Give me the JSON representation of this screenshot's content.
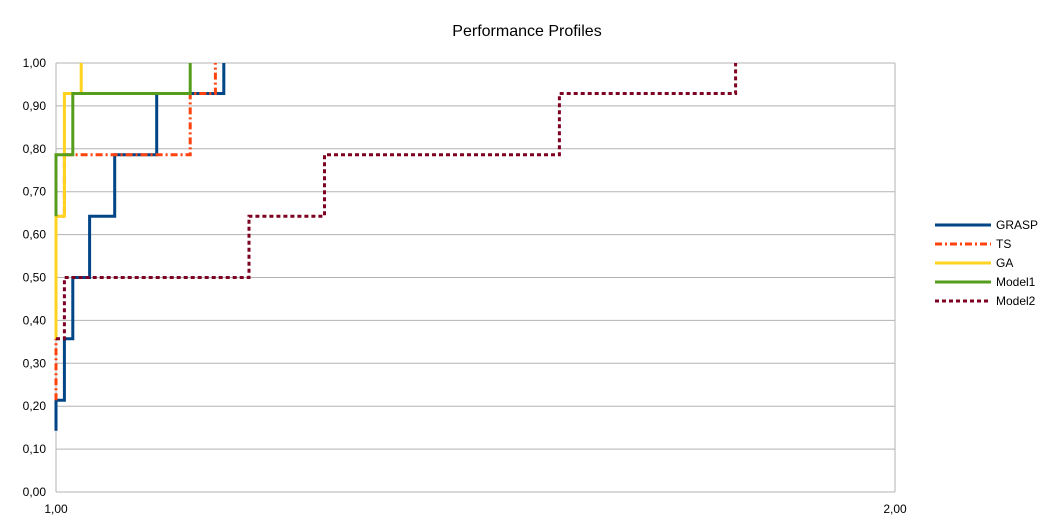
{
  "chart_data": {
    "type": "line",
    "step": true,
    "title": "Performance Profiles",
    "xlabel": "",
    "ylabel": "",
    "xlim": [
      1.0,
      2.0
    ],
    "ylim": [
      0.0,
      1.0
    ],
    "x_ticks": [
      "1,00",
      "2,00"
    ],
    "y_ticks": [
      "0,00",
      "0,10",
      "0,20",
      "0,30",
      "0,40",
      "0,50",
      "0,60",
      "0,70",
      "0,80",
      "0,90",
      "1,00"
    ],
    "grid": true,
    "legend_position": "right",
    "series": [
      {
        "name": "GRASP",
        "color": "#004586",
        "style": "solid",
        "x": [
          1.0,
          1.0,
          1.01,
          1.01,
          1.02,
          1.02,
          1.04,
          1.04,
          1.07,
          1.07,
          1.12,
          1.12,
          1.2,
          1.2
        ],
        "y": [
          0.143,
          0.214,
          0.214,
          0.357,
          0.357,
          0.5,
          0.5,
          0.643,
          0.643,
          0.786,
          0.786,
          0.929,
          0.929,
          1.0
        ]
      },
      {
        "name": "TS",
        "color": "#ff420e",
        "style": "dashdot",
        "x": [
          1.0,
          1.0,
          1.0,
          1.0,
          1.01,
          1.01,
          1.16,
          1.16,
          1.19,
          1.19
        ],
        "y": [
          0.214,
          0.5,
          0.5,
          0.643,
          0.643,
          0.786,
          0.786,
          0.929,
          0.929,
          1.0
        ]
      },
      {
        "name": "GA",
        "color": "#ffd320",
        "style": "solid",
        "x": [
          1.0,
          1.0,
          1.01,
          1.01,
          1.03,
          1.03
        ],
        "y": [
          0.357,
          0.643,
          0.643,
          0.929,
          0.929,
          1.0
        ]
      },
      {
        "name": "Model1",
        "color": "#579d1c",
        "style": "solid",
        "x": [
          1.0,
          1.0,
          1.02,
          1.02,
          1.16,
          1.16
        ],
        "y": [
          0.643,
          0.786,
          0.786,
          0.929,
          0.929,
          1.0
        ]
      },
      {
        "name": "Model2",
        "color": "#7e0021",
        "style": "dashed",
        "x": [
          1.0,
          1.0,
          1.01,
          1.01,
          1.23,
          1.23,
          1.32,
          1.32,
          1.6,
          1.6,
          1.81,
          1.81
        ],
        "y": [
          0.357,
          0.357,
          0.357,
          0.5,
          0.5,
          0.643,
          0.643,
          0.786,
          0.786,
          0.929,
          0.929,
          1.0
        ]
      }
    ]
  }
}
